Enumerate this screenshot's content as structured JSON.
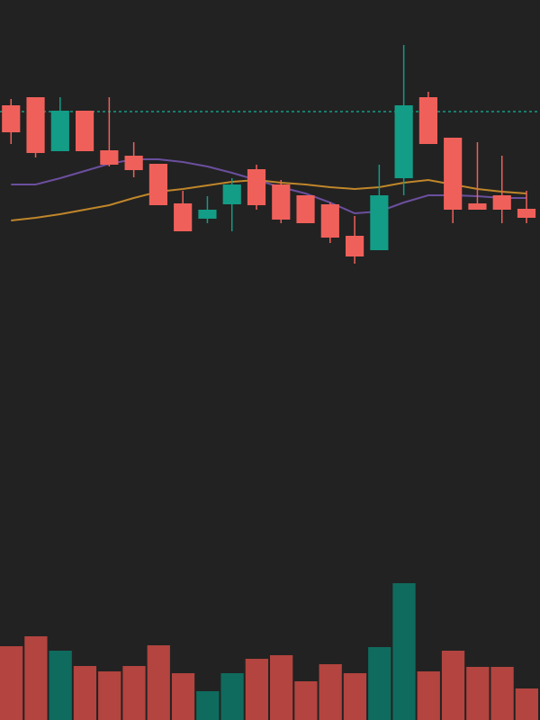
{
  "chart_data": {
    "type": "candlestick",
    "open": [
      683,
      692,
      632,
      677,
      633,
      627,
      618,
      574,
      557,
      573,
      612,
      595,
      583,
      573,
      538,
      522,
      602,
      692,
      647,
      574,
      583,
      568
    ],
    "close": [
      653,
      630,
      677,
      632,
      617,
      611,
      572,
      543,
      567,
      595,
      572,
      556,
      552,
      536,
      515,
      583,
      683,
      640,
      567,
      567,
      567,
      558
    ],
    "high": [
      690,
      692,
      692,
      677,
      692,
      642,
      618,
      588,
      582,
      602,
      617,
      600,
      583,
      575,
      560,
      617,
      750,
      698,
      647,
      642,
      627,
      588
    ],
    "low": [
      640,
      625,
      632,
      632,
      615,
      603,
      572,
      543,
      552,
      543,
      567,
      552,
      552,
      530,
      507,
      522,
      583,
      640,
      552,
      567,
      552,
      552
    ],
    "volume": [
      82,
      93,
      77,
      60,
      54,
      60,
      83,
      52,
      32,
      52,
      68,
      72,
      43,
      62,
      52,
      81,
      152,
      54,
      77,
      59,
      59,
      35
    ],
    "ylim": [
      0,
      800
    ],
    "volume_ylim": [
      0,
      800
    ],
    "up_color": "#139c86",
    "down_color": "#f0605a",
    "up_volume_color": "#0f6b5e",
    "down_volume_color": "#b3443f",
    "moving_averages": [
      {
        "color": "#6b4f9e",
        "values": [
          595,
          595,
          602,
          610,
          618,
          623,
          623,
          620,
          615,
          608,
          600,
          592,
          585,
          575,
          563,
          565,
          575,
          583,
          583,
          582,
          580,
          580
        ]
      },
      {
        "color": "#c0862a",
        "values": [
          555,
          558,
          562,
          567,
          572,
          580,
          587,
          590,
          594,
          598,
          600,
          597,
          595,
          592,
          590,
          592,
          597,
          600,
          595,
          590,
          587,
          585
        ]
      }
    ],
    "price_line": {
      "value": 676,
      "color": "#139c86"
    }
  }
}
